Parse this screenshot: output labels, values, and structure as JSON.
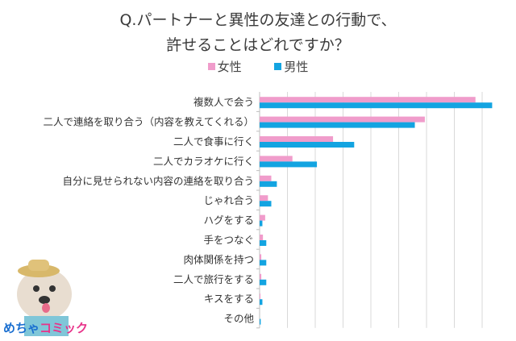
{
  "chart_data": {
    "type": "bar",
    "orientation": "horizontal",
    "title": [
      "Q.パートナーと異性の友達との行動で、",
      "許せることはどれですか？"
    ],
    "categories": [
      "複数人で会う",
      "二人で連絡を取り合う（内容を教えてくれる）",
      "二人で食事に行く",
      "二人でカラオケに行く",
      "自分に見せられない内容の連絡を取り合う",
      "じゃれ合う",
      "ハグをする",
      "手をつなぐ",
      "肉体関係を持つ",
      "二人で旅行をする",
      "キスをする",
      "その他"
    ],
    "series": [
      {
        "name": "女性",
        "color": "#f09ccb",
        "values": [
          38.8,
          29.7,
          13.2,
          5.9,
          2.1,
          1.5,
          1.0,
          0.6,
          0.3,
          0.3,
          0.15,
          0
        ]
      },
      {
        "name": "男性",
        "color": "#13a4e1",
        "values": [
          41.8,
          27.9,
          17.0,
          10.3,
          3.1,
          2.1,
          0.5,
          1.2,
          1.2,
          1.2,
          0.5,
          0.2
        ]
      }
    ],
    "xlim": [
      0,
      40
    ],
    "grid": true,
    "tick_labels_shown": false,
    "legend": "top"
  },
  "logo": {
    "text_a": "めちゃ",
    "text_b": "コミック"
  }
}
